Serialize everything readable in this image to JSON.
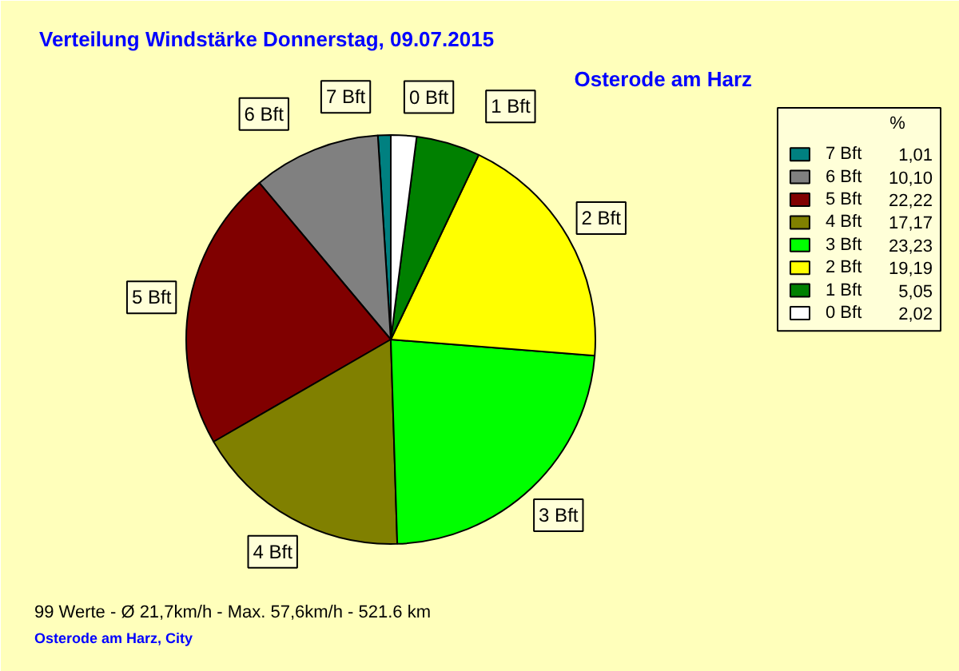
{
  "chart_data": {
    "type": "pie",
    "title": "Verteilung Windstärke  Donnerstag, 09.07.2015",
    "subtitle": "Osterode am Harz",
    "categories": [
      "7 Bft",
      "6 Bft",
      "5 Bft",
      "4 Bft",
      "3 Bft",
      "2 Bft",
      "1 Bft",
      "0 Bft"
    ],
    "values": [
      1.01,
      10.1,
      22.22,
      17.17,
      23.23,
      19.19,
      5.05,
      2.02
    ],
    "value_labels": [
      "1,01",
      "10,10",
      "22,22",
      "17,17",
      "23,23",
      "19,19",
      "5,05",
      "2,02"
    ],
    "colors": [
      "#008080",
      "#808080",
      "#800000",
      "#808000",
      "#00ff00",
      "#ffff00",
      "#008000",
      "#ffffff"
    ],
    "legend": "top right",
    "legend_title": "%",
    "annotations": [
      "99 Werte   -   Ø 21,7km/h  -  Max. 57,6km/h   -   521.6 km",
      "Osterode am Harz, City"
    ]
  }
}
